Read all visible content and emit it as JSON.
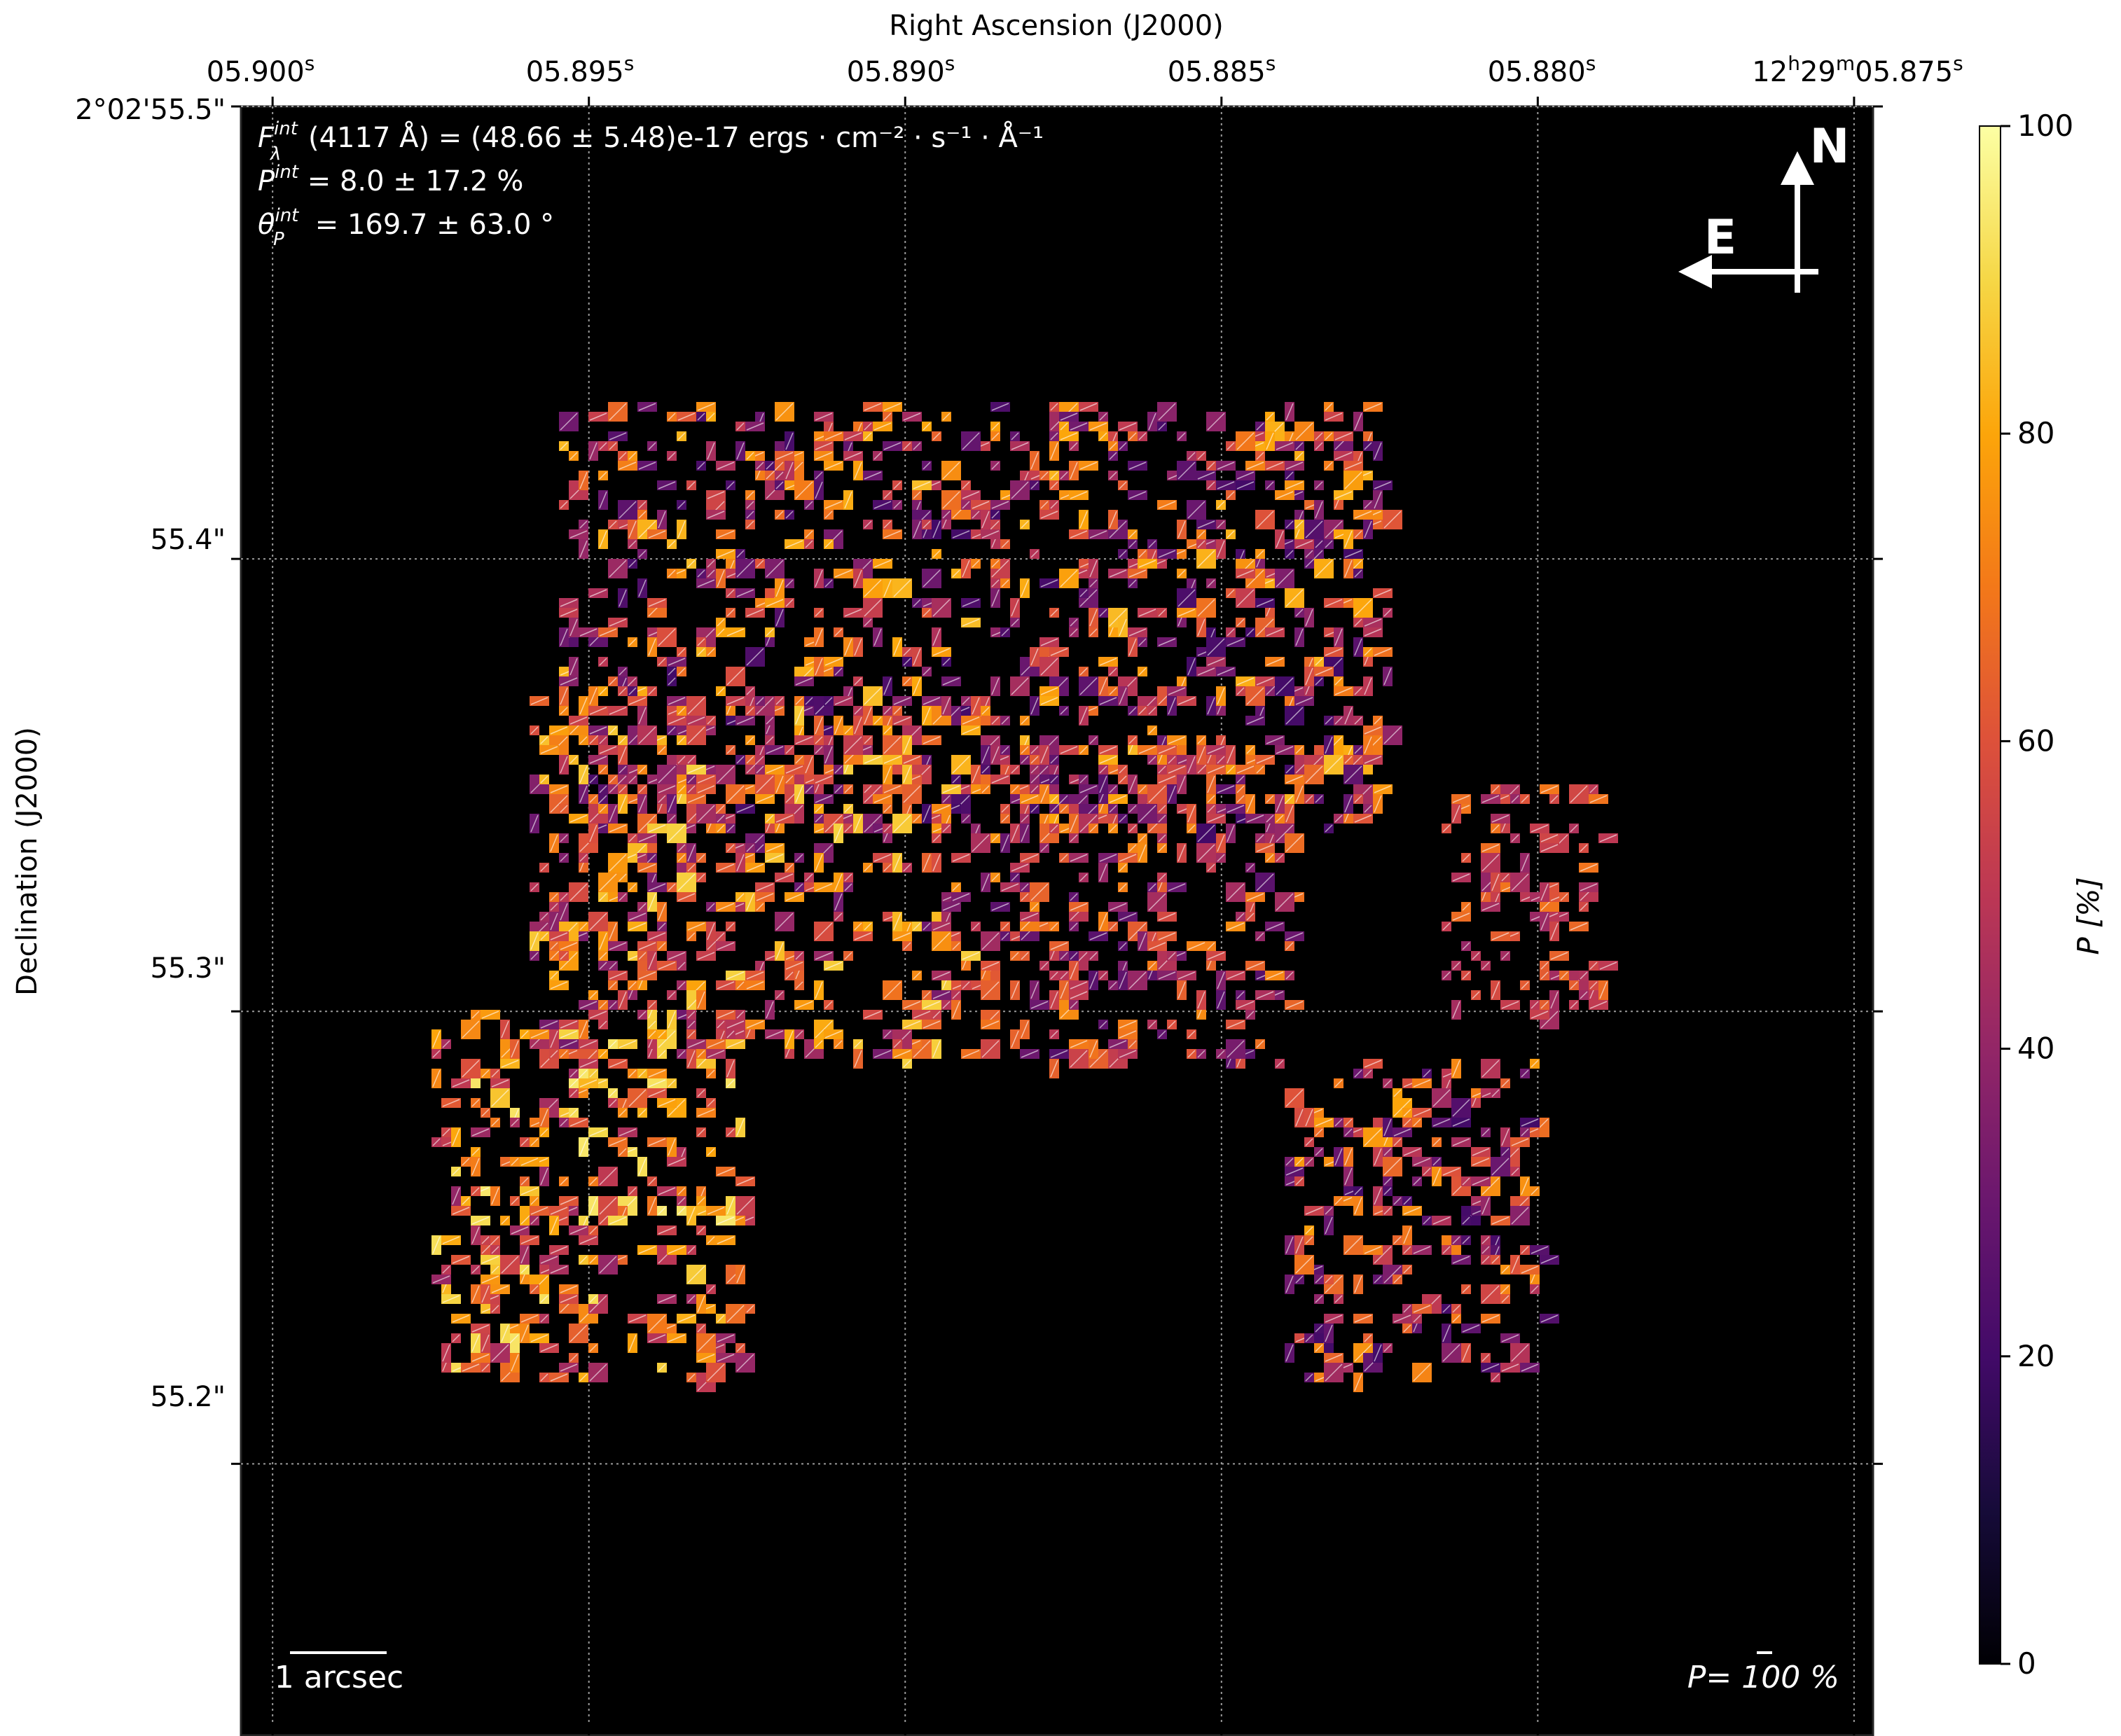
{
  "chart_data": {
    "type": "heatmap",
    "plot_kind": "polarization map (P %) with polarization vectors",
    "xlabel": "Right Ascension (J2000)",
    "ylabel": "Declination (J2000)",
    "x_ticks": [
      {
        "main": "05.900",
        "sup": "s",
        "ra_sec": 5.9
      },
      {
        "main": "05.895",
        "sup": "s",
        "ra_sec": 5.895
      },
      {
        "main": "05.890",
        "sup": "s",
        "ra_sec": 5.89
      },
      {
        "main": "05.885",
        "sup": "s",
        "ra_sec": 5.885
      },
      {
        "main": "05.880",
        "sup": "s",
        "ra_sec": 5.88
      },
      {
        "main": "12h29m05.875",
        "sup": "s",
        "ra_sec": 5.875
      }
    ],
    "x_first_tick_label": "05.900s",
    "x_last_tick_label": "12h29m05.875s",
    "y_ticks": [
      {
        "label": "2°02'55.5\"",
        "dec_arcsec": 55.5
      },
      {
        "label": "55.4\"",
        "dec_arcsec": 55.4
      },
      {
        "label": "55.3\"",
        "dec_arcsec": 55.3
      },
      {
        "label": "55.2\"",
        "dec_arcsec": 55.2
      }
    ],
    "xlim_ra_sec": [
      5.9005,
      5.8747
    ],
    "ylim_dec_arcsec": [
      55.14,
      55.5
    ],
    "grid": true,
    "colorbar": {
      "label": "P [%]",
      "range": [
        0,
        100
      ],
      "ticks": [
        "0",
        "20",
        "40",
        "60",
        "80",
        "100"
      ],
      "colormap": "inferno"
    },
    "annotations": {
      "flux_label": "F",
      "flux_sup": "int",
      "flux_sub": "λ",
      "flux_value": "(4117 Å) = (48.66 ± 5.48)e-17 ergs · cm⁻² · s⁻¹ · Å⁻¹",
      "pol_label": "P",
      "pol_sup": "int",
      "pol_value": " = 8.0 ± 17.2 %",
      "angle_label": "θ",
      "angle_sup": "int",
      "angle_sub": "P",
      "angle_value": " = 169.7 ± 63.0 °",
      "scale_bar_label": "1 arcsec",
      "vector_scale_label": "P= 100 %",
      "compass_north": "N",
      "compass_east": "E"
    },
    "regions": [
      {
        "ra_sec": [
          5.8955,
          5.8825
        ],
        "dec_arcsec": [
          55.34,
          55.435
        ],
        "p_range": [
          20,
          85
        ]
      },
      {
        "ra_sec": [
          5.896,
          5.889
        ],
        "dec_arcsec": [
          55.29,
          55.37
        ],
        "p_range": [
          30,
          90
        ]
      },
      {
        "ra_sec": [
          5.889,
          5.884
        ],
        "dec_arcsec": [
          55.29,
          55.36
        ],
        "p_range": [
          25,
          75
        ]
      },
      {
        "ra_sec": [
          5.884,
          5.88
        ],
        "dec_arcsec": [
          55.22,
          55.29
        ],
        "p_range": [
          20,
          80
        ]
      },
      {
        "ra_sec": [
          5.8815,
          5.879
        ],
        "dec_arcsec": [
          55.3,
          55.35
        ],
        "p_range": [
          40,
          70
        ]
      },
      {
        "ra_sec": [
          5.8975,
          5.8925
        ],
        "dec_arcsec": [
          55.22,
          55.3
        ],
        "p_range": [
          40,
          95
        ]
      }
    ]
  }
}
